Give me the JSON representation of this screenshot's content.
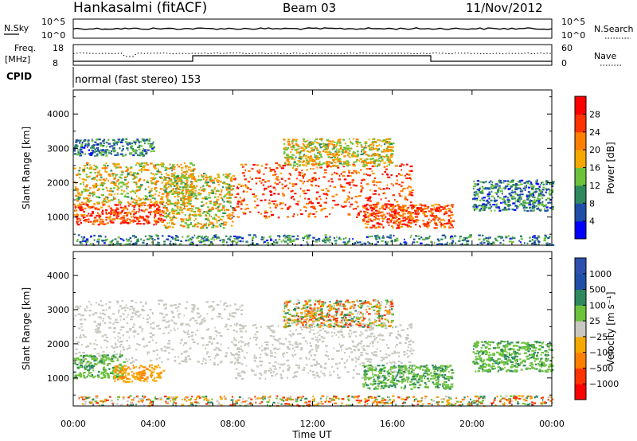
{
  "header": {
    "title": "Hankasalmi (fitACF)",
    "beam": "Beam 03",
    "date": "11/Nov/2012"
  },
  "summary_panels": {
    "nsky": {
      "label": "N.Sky",
      "ticks": [
        "10^5",
        "10^0"
      ],
      "right_ticks": [
        "10^5",
        "10^0"
      ],
      "right_label": "N.Search"
    },
    "freq": {
      "label": "Freq.",
      "unit": "[MHz]",
      "ticks": [
        "18",
        "8"
      ],
      "right_ticks": [
        "60",
        "0"
      ],
      "right_label": "Nave"
    },
    "cpid": {
      "label": "CPID",
      "value": "normal (fast stereo) 153"
    }
  },
  "colors": {
    "power": [
      "#0000ff",
      "#1f4fa8",
      "#2e8a5e",
      "#6cc23a",
      "#f5a800",
      "#ff7f00",
      "#ff3300",
      "#ff0000"
    ],
    "velocity": [
      "#ff0000",
      "#ff3300",
      "#ff7f00",
      "#f5a800",
      "#c8c8c0",
      "#6cc23a",
      "#2e8a5e",
      "#1f4fa8",
      "#2e51b0"
    ]
  },
  "chart_data": [
    {
      "type": "heatmap",
      "name": "power",
      "xlabel": "",
      "ylabel": "Slant Range [km]",
      "x_ticks": [
        "00:00",
        "04:00",
        "08:00",
        "12:00",
        "16:00",
        "20:00",
        "00:00"
      ],
      "y_ticks": [
        "1000",
        "2000",
        "3000",
        "4000"
      ],
      "ylim": [
        180,
        4700
      ],
      "xlim_hours": [
        0,
        24
      ],
      "colorbar_label": "Power [dB]",
      "colorbar_ticks": [
        "4",
        "8",
        "12",
        "16",
        "20",
        "24",
        "28"
      ],
      "scatter_regions": [
        {
          "t": [
            0.0,
            4.5
          ],
          "r": [
            800,
            1400
          ],
          "level": "high"
        },
        {
          "t": [
            0.0,
            6.0
          ],
          "r": [
            1400,
            2600
          ],
          "level": "mid"
        },
        {
          "t": [
            0.0,
            4.0
          ],
          "r": [
            2800,
            3300
          ],
          "level": "low"
        },
        {
          "t": [
            4.5,
            8.0
          ],
          "r": [
            700,
            2300
          ],
          "level": "mid"
        },
        {
          "t": [
            8.0,
            17.0
          ],
          "r": [
            1000,
            2600
          ],
          "level": "high"
        },
        {
          "t": [
            10.5,
            16.0
          ],
          "r": [
            2500,
            3300
          ],
          "level": "mid"
        },
        {
          "t": [
            14.5,
            19.0
          ],
          "r": [
            700,
            1400
          ],
          "level": "high"
        },
        {
          "t": [
            20.0,
            24.0
          ],
          "r": [
            1200,
            2100
          ],
          "level": "low"
        },
        {
          "t": [
            0.0,
            24.0
          ],
          "r": [
            200,
            500
          ],
          "level": "low"
        }
      ]
    },
    {
      "type": "heatmap",
      "name": "velocity",
      "xlabel": "Time UT",
      "ylabel": "Slant Range [km]",
      "x_ticks": [
        "00:00",
        "04:00",
        "08:00",
        "12:00",
        "16:00",
        "20:00",
        "00:00"
      ],
      "y_ticks": [
        "1000",
        "2000",
        "3000",
        "4000"
      ],
      "ylim": [
        180,
        4700
      ],
      "xlim_hours": [
        0,
        24
      ],
      "colorbar_label": "Velocity [m s⁻¹]",
      "colorbar_ticks": [
        "1000",
        "500",
        "100",
        "25",
        "−25",
        "−100",
        "−500",
        "−1000"
      ],
      "scatter_regions": [
        {
          "t": [
            0.0,
            8.5
          ],
          "r": [
            1400,
            3300
          ],
          "level": "ground"
        },
        {
          "t": [
            8.0,
            17.0
          ],
          "r": [
            1000,
            2600
          ],
          "level": "ground"
        },
        {
          "t": [
            0.0,
            2.5
          ],
          "r": [
            1000,
            1700
          ],
          "level": "toward"
        },
        {
          "t": [
            2.0,
            4.5
          ],
          "r": [
            900,
            1400
          ],
          "level": "away"
        },
        {
          "t": [
            10.5,
            16.0
          ],
          "r": [
            2500,
            3300
          ],
          "level": "mixed"
        },
        {
          "t": [
            14.5,
            19.0
          ],
          "r": [
            700,
            1400
          ],
          "level": "toward"
        },
        {
          "t": [
            20.0,
            24.0
          ],
          "r": [
            1200,
            2100
          ],
          "level": "toward"
        },
        {
          "t": [
            0.0,
            24.0
          ],
          "r": [
            200,
            500
          ],
          "level": "mixed"
        }
      ]
    }
  ]
}
